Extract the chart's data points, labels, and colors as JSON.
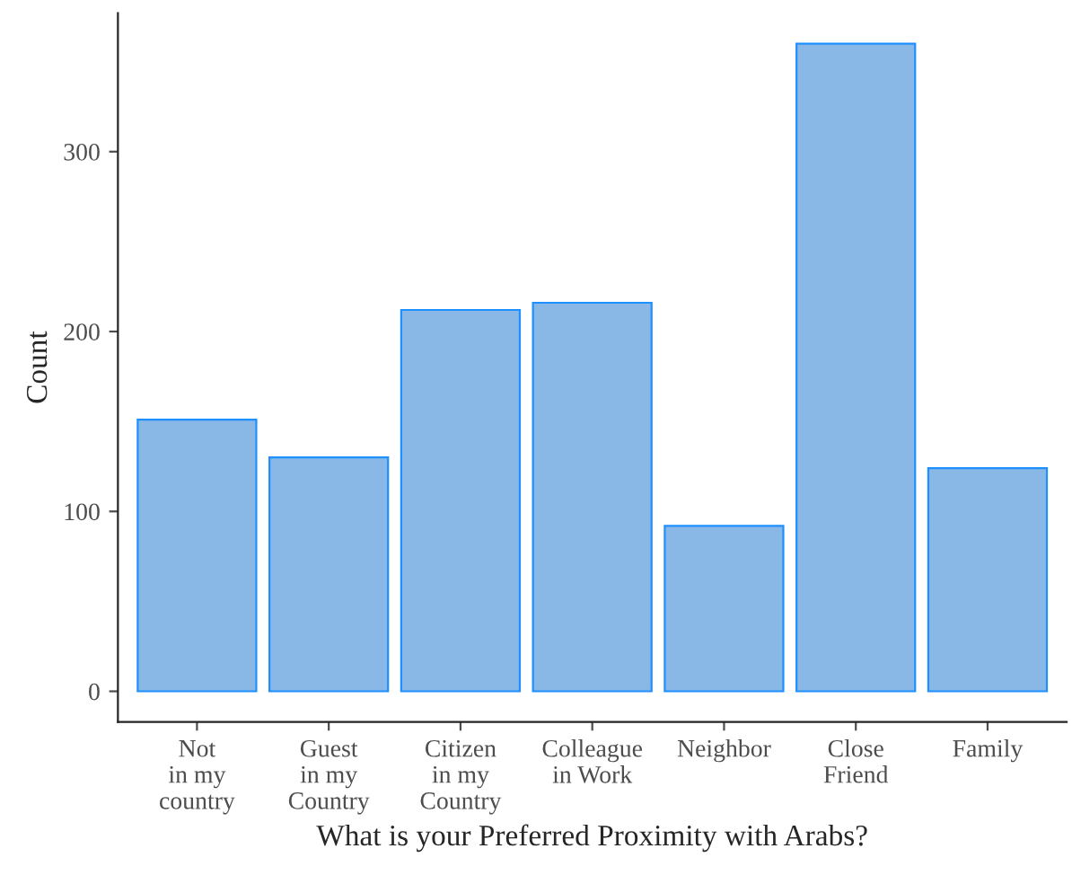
{
  "chart_data": {
    "type": "bar",
    "xlabel": "What is your Preferred Proximity with Arabs?",
    "ylabel": "Count",
    "categories": [
      "Not\nin my\ncountry",
      "Guest\nin my\nCountry",
      "Citizen\nin my\nCountry",
      "Colleague\nin Work",
      "Neighbor",
      "Close\nFriend",
      "Family"
    ],
    "values": [
      151,
      130,
      212,
      216,
      92,
      360,
      124
    ],
    "color": "#8ab8e6",
    "ylim": [
      -17,
      377
    ],
    "yticks": [
      0,
      100,
      200,
      300
    ],
    "grid": false,
    "legend": false
  }
}
